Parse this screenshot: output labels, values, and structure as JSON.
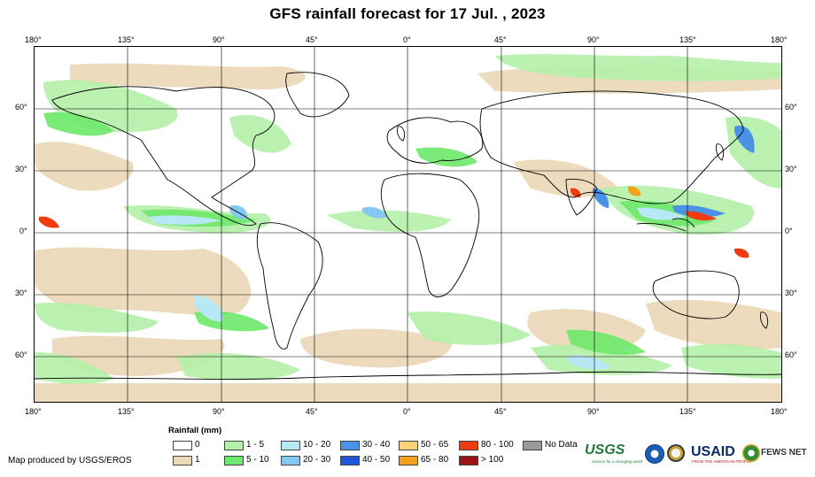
{
  "title": "GFS rainfall forecast for 17 Jul. , 2023",
  "map": {
    "lon_ticks": [
      "180°",
      "135°",
      "90°",
      "45°",
      "0°",
      "45°",
      "90°",
      "135°",
      "180°"
    ],
    "lat_ticks": [
      "60°",
      "30°",
      "0°",
      "30°",
      "60°"
    ],
    "ocean_color": "#ffffff",
    "land_outline_color": "#000000",
    "grid_color": "#000000"
  },
  "legend": {
    "title": "Rainfall (mm)",
    "items": [
      {
        "label": "0",
        "color": "#ffffff"
      },
      {
        "label": "1",
        "color": "#ecd9b9"
      },
      {
        "label": "1 - 5",
        "color": "#b4f0a8"
      },
      {
        "label": "5 - 10",
        "color": "#6ee86a"
      },
      {
        "label": "10 - 20",
        "color": "#b8e8f5"
      },
      {
        "label": "20 - 30",
        "color": "#86c6f2"
      },
      {
        "label": "30 - 40",
        "color": "#4a92e6"
      },
      {
        "label": "40 - 50",
        "color": "#1f55d6"
      },
      {
        "label": "50 - 65",
        "color": "#fdd07a"
      },
      {
        "label": "65 - 80",
        "color": "#f7a21b"
      },
      {
        "label": "80 - 100",
        "color": "#f03a0f"
      },
      {
        "label": "> 100",
        "color": "#9a1414"
      },
      {
        "label": "No Data",
        "color": "#9a9a9a"
      }
    ]
  },
  "credit": "Map produced by USGS/EROS",
  "logos": {
    "usgs": "USGS",
    "usgs_tagline": "science for a changing world",
    "usaid": "USAID",
    "usaid_tagline": "FROM THE AMERICAN PEOPLE",
    "fews": "FEWS NET",
    "noaa_icon": "noaa-icon",
    "doi_icon": "doi-seal-icon",
    "fews_icon": "fews-leaf-icon"
  }
}
